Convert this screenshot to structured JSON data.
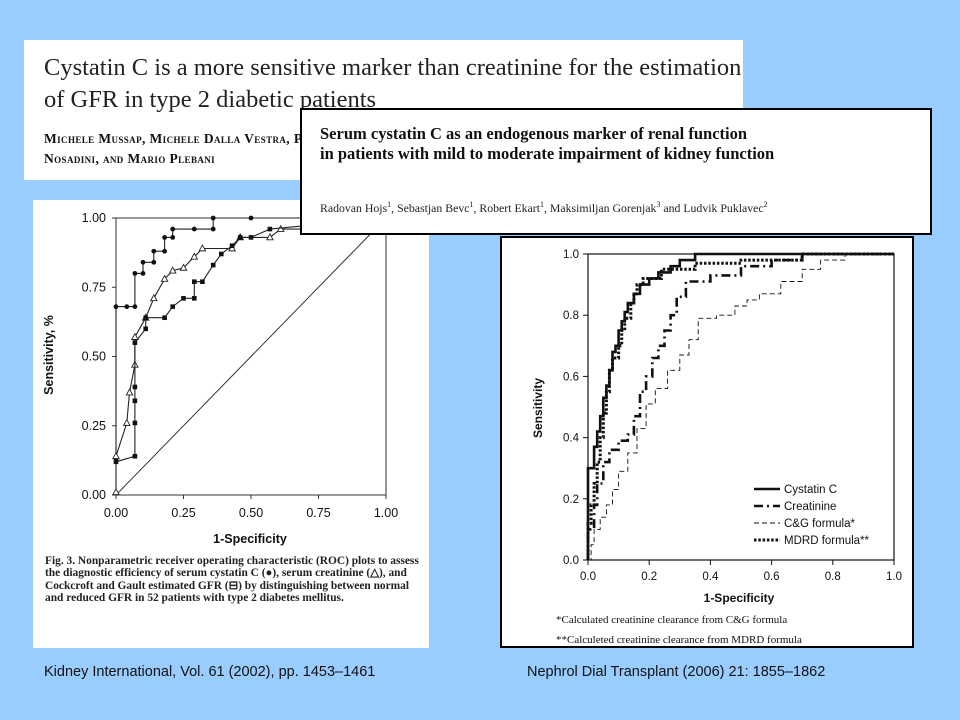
{
  "paper1": {
    "title": "Cystatin C is a more sensitive marker than creatinine for the estimation of GFR in type 2 diabetic patients",
    "authors": "Michele Mussap, Michele Dalla Vestra, Paola Fioretto, Alois Saller, Mariacristina Varagnolo, Romano Nosadini, and Mario Plebani"
  },
  "paper2": {
    "title_line1": "Serum cystatin C as an endogenous marker of renal function",
    "title_line2": "in patients with mild to moderate impairment of kidney function",
    "authors": [
      {
        "name": "Radovan Hojs",
        "sup": "1"
      },
      {
        "name": "Sebastjan Bevc",
        "sup": "1"
      },
      {
        "name": "Robert Ekart",
        "sup": "1"
      },
      {
        "name": "Maksimiljan Gorenjak",
        "sup": "3"
      },
      {
        "name": "Ludvik Puklavec",
        "sup": "2"
      }
    ]
  },
  "left_caption": "Fig. 3. Nonparametric receiver operating characteristic (ROC) plots to assess the diagnostic efficiency of serum cystatin C (●), serum creatinine (△), and Cockcroft and Gault estimated GFR (⊟) by distinguishing between normal and reduced GFR in 52 patients with type 2 diabetes mellitus.",
  "right_notes": {
    "line1": "*Calculated creatinine clearance from C&G formula",
    "line2": "**Calculeted creatinine clearance from MDRD formula"
  },
  "citations": {
    "left": "Kidney International, Vol. 61 (2002), pp. 1453–1461",
    "right": "Nephrol Dial Transplant (2006) 21: 1855–1862"
  },
  "chart_data": [
    {
      "type": "line",
      "xlabel": "1-Specificity",
      "ylabel": "Sensitivity, %",
      "xlim": [
        0,
        1
      ],
      "ylim": [
        0,
        1
      ],
      "xticks": [
        "0.00",
        "0.25",
        "0.50",
        "0.75",
        "1.00"
      ],
      "yticks": [
        "0.00",
        "0.25",
        "0.50",
        "0.75",
        "1.00"
      ],
      "grid": false,
      "series": [
        {
          "marker": "filled-circle",
          "points": [
            [
              0,
              0.13
            ],
            [
              0,
              0.68
            ],
            [
              0.04,
              0.68
            ],
            [
              0.07,
              0.68
            ],
            [
              0.07,
              0.8
            ],
            [
              0.1,
              0.8
            ],
            [
              0.1,
              0.84
            ],
            [
              0.14,
              0.84
            ],
            [
              0.14,
              0.88
            ],
            [
              0.18,
              0.88
            ],
            [
              0.18,
              0.93
            ],
            [
              0.21,
              0.93
            ],
            [
              0.21,
              0.96
            ],
            [
              0.29,
              0.96
            ],
            [
              0.36,
              0.96
            ],
            [
              0.36,
              1.0
            ],
            [
              0.5,
              1.0
            ],
            [
              0.75,
              1.0
            ],
            [
              1.0,
              1.0
            ]
          ]
        },
        {
          "marker": "open-triangle",
          "points": [
            [
              0,
              0.01
            ],
            [
              0,
              0.14
            ],
            [
              0.04,
              0.26
            ],
            [
              0.05,
              0.37
            ],
            [
              0.07,
              0.47
            ],
            [
              0.07,
              0.57
            ],
            [
              0.11,
              0.64
            ],
            [
              0.14,
              0.71
            ],
            [
              0.18,
              0.78
            ],
            [
              0.21,
              0.81
            ],
            [
              0.25,
              0.82
            ],
            [
              0.29,
              0.86
            ],
            [
              0.32,
              0.89
            ],
            [
              0.43,
              0.89
            ],
            [
              0.46,
              0.93
            ],
            [
              0.57,
              0.93
            ],
            [
              0.61,
              0.96
            ],
            [
              0.71,
              0.96
            ],
            [
              1.0,
              1.0
            ]
          ]
        },
        {
          "marker": "boxed-square",
          "points": [
            [
              0,
              0.12
            ],
            [
              0.07,
              0.14
            ],
            [
              0.07,
              0.26
            ],
            [
              0.07,
              0.34
            ],
            [
              0.07,
              0.39
            ],
            [
              0.07,
              0.55
            ],
            [
              0.11,
              0.6
            ],
            [
              0.11,
              0.64
            ],
            [
              0.18,
              0.64
            ],
            [
              0.21,
              0.68
            ],
            [
              0.25,
              0.71
            ],
            [
              0.29,
              0.71
            ],
            [
              0.29,
              0.77
            ],
            [
              0.32,
              0.77
            ],
            [
              0.36,
              0.83
            ],
            [
              0.39,
              0.87
            ],
            [
              0.43,
              0.9
            ],
            [
              0.46,
              0.93
            ],
            [
              0.5,
              0.93
            ],
            [
              0.57,
              0.96
            ],
            [
              1.0,
              1.0
            ]
          ]
        }
      ]
    },
    {
      "type": "line",
      "xlabel": "1-Specificity",
      "ylabel": "Sensitivity",
      "xlim": [
        0,
        1
      ],
      "ylim": [
        0,
        1
      ],
      "xticks": [
        "0.0",
        "0.2",
        "0.4",
        "0.6",
        "0.8",
        "1.0"
      ],
      "yticks": [
        "0.0",
        "0.2",
        "0.4",
        "0.6",
        "0.8",
        "1.0"
      ],
      "grid": false,
      "legend": "bottom-right",
      "series": [
        {
          "name": "Cystatin C",
          "style": "solid-thick",
          "points": [
            [
              0,
              0
            ],
            [
              0,
              0.3
            ],
            [
              0.02,
              0.3
            ],
            [
              0.02,
              0.37
            ],
            [
              0.03,
              0.37
            ],
            [
              0.03,
              0.42
            ],
            [
              0.04,
              0.42
            ],
            [
              0.04,
              0.47
            ],
            [
              0.05,
              0.47
            ],
            [
              0.05,
              0.53
            ],
            [
              0.06,
              0.53
            ],
            [
              0.06,
              0.57
            ],
            [
              0.07,
              0.57
            ],
            [
              0.07,
              0.62
            ],
            [
              0.08,
              0.62
            ],
            [
              0.08,
              0.68
            ],
            [
              0.09,
              0.68
            ],
            [
              0.09,
              0.7
            ],
            [
              0.1,
              0.7
            ],
            [
              0.1,
              0.75
            ],
            [
              0.11,
              0.75
            ],
            [
              0.11,
              0.78
            ],
            [
              0.12,
              0.78
            ],
            [
              0.12,
              0.81
            ],
            [
              0.13,
              0.81
            ],
            [
              0.13,
              0.84
            ],
            [
              0.15,
              0.84
            ],
            [
              0.15,
              0.87
            ],
            [
              0.17,
              0.87
            ],
            [
              0.17,
              0.9
            ],
            [
              0.2,
              0.9
            ],
            [
              0.2,
              0.92
            ],
            [
              0.23,
              0.92
            ],
            [
              0.23,
              0.94
            ],
            [
              0.27,
              0.94
            ],
            [
              0.27,
              0.96
            ],
            [
              0.3,
              0.96
            ],
            [
              0.3,
              0.98
            ],
            [
              0.35,
              0.98
            ],
            [
              0.35,
              1.0
            ],
            [
              1.0,
              1.0
            ]
          ]
        },
        {
          "name": "Creatinine",
          "style": "dash-dot-thick",
          "points": [
            [
              0,
              0
            ],
            [
              0,
              0.1
            ],
            [
              0.02,
              0.1
            ],
            [
              0.02,
              0.18
            ],
            [
              0.03,
              0.18
            ],
            [
              0.03,
              0.25
            ],
            [
              0.05,
              0.25
            ],
            [
              0.05,
              0.32
            ],
            [
              0.07,
              0.32
            ],
            [
              0.07,
              0.36
            ],
            [
              0.1,
              0.36
            ],
            [
              0.1,
              0.39
            ],
            [
              0.13,
              0.39
            ],
            [
              0.13,
              0.41
            ],
            [
              0.15,
              0.41
            ],
            [
              0.15,
              0.47
            ],
            [
              0.17,
              0.47
            ],
            [
              0.17,
              0.55
            ],
            [
              0.19,
              0.55
            ],
            [
              0.19,
              0.6
            ],
            [
              0.21,
              0.6
            ],
            [
              0.21,
              0.66
            ],
            [
              0.23,
              0.66
            ],
            [
              0.23,
              0.7
            ],
            [
              0.25,
              0.7
            ],
            [
              0.25,
              0.75
            ],
            [
              0.27,
              0.75
            ],
            [
              0.27,
              0.8
            ],
            [
              0.29,
              0.8
            ],
            [
              0.29,
              0.86
            ],
            [
              0.32,
              0.86
            ],
            [
              0.32,
              0.91
            ],
            [
              0.4,
              0.91
            ],
            [
              0.4,
              0.93
            ],
            [
              0.5,
              0.93
            ],
            [
              0.5,
              0.96
            ],
            [
              0.6,
              0.96
            ],
            [
              0.6,
              0.98
            ],
            [
              0.7,
              0.98
            ],
            [
              0.7,
              1.0
            ],
            [
              1.0,
              1.0
            ]
          ]
        },
        {
          "name": "C&G formula*",
          "style": "dashed-thin",
          "points": [
            [
              0,
              0
            ],
            [
              0.01,
              0
            ],
            [
              0.01,
              0.05
            ],
            [
              0.02,
              0.05
            ],
            [
              0.02,
              0.1
            ],
            [
              0.04,
              0.1
            ],
            [
              0.04,
              0.14
            ],
            [
              0.06,
              0.14
            ],
            [
              0.06,
              0.18
            ],
            [
              0.08,
              0.18
            ],
            [
              0.08,
              0.23
            ],
            [
              0.1,
              0.23
            ],
            [
              0.1,
              0.29
            ],
            [
              0.13,
              0.29
            ],
            [
              0.13,
              0.35
            ],
            [
              0.16,
              0.35
            ],
            [
              0.16,
              0.43
            ],
            [
              0.19,
              0.43
            ],
            [
              0.19,
              0.51
            ],
            [
              0.22,
              0.51
            ],
            [
              0.22,
              0.56
            ],
            [
              0.26,
              0.56
            ],
            [
              0.26,
              0.62
            ],
            [
              0.3,
              0.62
            ],
            [
              0.3,
              0.67
            ],
            [
              0.33,
              0.67
            ],
            [
              0.33,
              0.72
            ],
            [
              0.36,
              0.72
            ],
            [
              0.36,
              0.79
            ],
            [
              0.42,
              0.79
            ],
            [
              0.42,
              0.8
            ],
            [
              0.48,
              0.8
            ],
            [
              0.48,
              0.83
            ],
            [
              0.52,
              0.83
            ],
            [
              0.52,
              0.85
            ],
            [
              0.56,
              0.85
            ],
            [
              0.56,
              0.87
            ],
            [
              0.63,
              0.87
            ],
            [
              0.63,
              0.91
            ],
            [
              0.7,
              0.91
            ],
            [
              0.7,
              0.95
            ],
            [
              0.76,
              0.95
            ],
            [
              0.76,
              0.98
            ],
            [
              0.84,
              0.98
            ],
            [
              0.84,
              1.0
            ],
            [
              1.0,
              1.0
            ]
          ]
        },
        {
          "name": "MDRD formula**",
          "style": "dotted-thick",
          "points": [
            [
              0,
              0
            ],
            [
              0,
              0.12
            ],
            [
              0.01,
              0.12
            ],
            [
              0.01,
              0.18
            ],
            [
              0.02,
              0.18
            ],
            [
              0.02,
              0.25
            ],
            [
              0.03,
              0.25
            ],
            [
              0.03,
              0.32
            ],
            [
              0.04,
              0.32
            ],
            [
              0.04,
              0.4
            ],
            [
              0.05,
              0.4
            ],
            [
              0.05,
              0.48
            ],
            [
              0.06,
              0.48
            ],
            [
              0.06,
              0.55
            ],
            [
              0.07,
              0.55
            ],
            [
              0.07,
              0.62
            ],
            [
              0.08,
              0.62
            ],
            [
              0.08,
              0.66
            ],
            [
              0.1,
              0.66
            ],
            [
              0.1,
              0.7
            ],
            [
              0.11,
              0.7
            ],
            [
              0.11,
              0.75
            ],
            [
              0.12,
              0.75
            ],
            [
              0.12,
              0.79
            ],
            [
              0.14,
              0.79
            ],
            [
              0.14,
              0.84
            ],
            [
              0.15,
              0.84
            ],
            [
              0.15,
              0.87
            ],
            [
              0.16,
              0.87
            ],
            [
              0.16,
              0.9
            ],
            [
              0.18,
              0.9
            ],
            [
              0.18,
              0.92
            ],
            [
              0.24,
              0.92
            ],
            [
              0.24,
              0.95
            ],
            [
              0.35,
              0.95
            ],
            [
              0.35,
              0.97
            ],
            [
              0.5,
              0.97
            ],
            [
              0.5,
              0.98
            ],
            [
              0.7,
              0.98
            ],
            [
              0.7,
              1.0
            ],
            [
              1.0,
              1.0
            ]
          ]
        }
      ]
    }
  ]
}
